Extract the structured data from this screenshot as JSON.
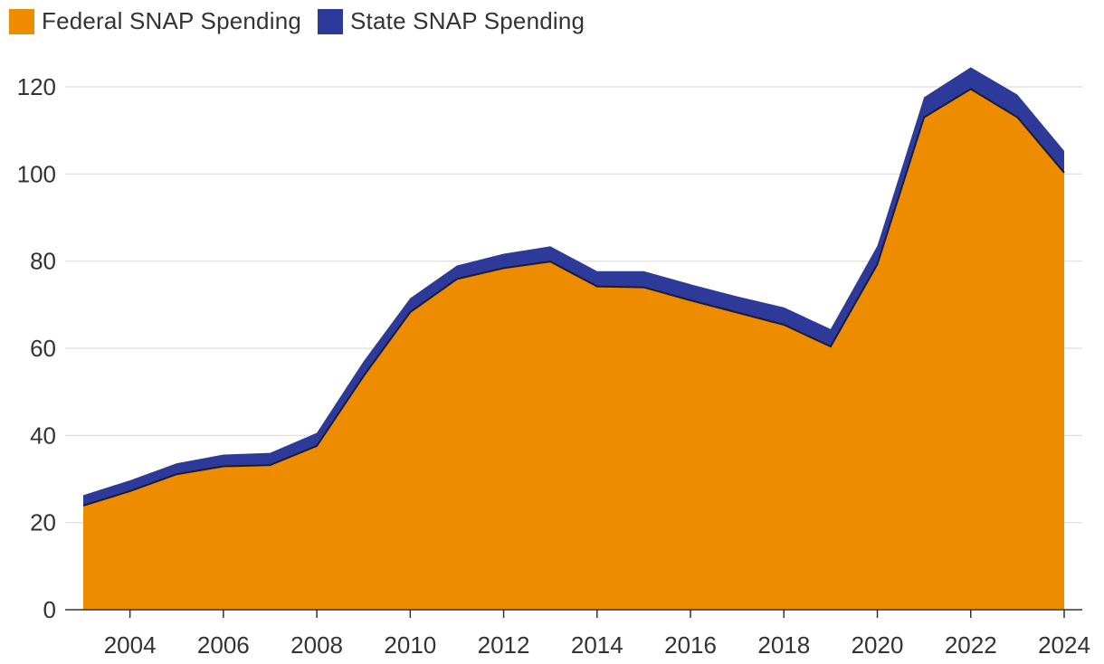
{
  "legend": {
    "federal_label": "Federal SNAP Spending",
    "state_label": "State SNAP Spending"
  },
  "colors": {
    "federal": "#EE8C00",
    "state": "#2E3A9A",
    "outline": "#1a1a3a",
    "grid": "#dddddd",
    "axis": "#333333"
  },
  "chart_data": {
    "type": "area",
    "stacked": true,
    "x": [
      2003,
      2004,
      2005,
      2006,
      2007,
      2008,
      2009,
      2010,
      2011,
      2012,
      2013,
      2014,
      2015,
      2016,
      2017,
      2018,
      2019,
      2020,
      2021,
      2022,
      2023,
      2024
    ],
    "series": [
      {
        "name": "Federal SNAP Spending",
        "values": [
          23.9,
          27.2,
          31.1,
          32.9,
          33.2,
          37.6,
          53.6,
          68.3,
          75.9,
          78.4,
          79.9,
          74.2,
          74.0,
          71.0,
          68.2,
          65.4,
          60.4,
          79.3,
          113.0,
          119.5,
          113.0,
          100.3
        ]
      },
      {
        "name": "State SNAP Spending",
        "values": [
          2.4,
          2.5,
          2.5,
          2.7,
          2.8,
          3.0,
          3.4,
          3.2,
          3.1,
          3.3,
          3.5,
          3.5,
          3.7,
          3.7,
          3.7,
          4.0,
          4.0,
          4.2,
          4.6,
          5.0,
          5.2,
          5.0
        ]
      }
    ],
    "xticks": [
      "2004",
      "2006",
      "2008",
      "2010",
      "2012",
      "2014",
      "2016",
      "2018",
      "2020",
      "2022",
      "2024"
    ],
    "yticks": [
      "0",
      "20",
      "40",
      "60",
      "80",
      "100",
      "120"
    ],
    "xlim": [
      2003,
      2024
    ],
    "ylim": [
      0,
      120
    ],
    "grid": "horizontal",
    "legend_position": "top-left"
  }
}
